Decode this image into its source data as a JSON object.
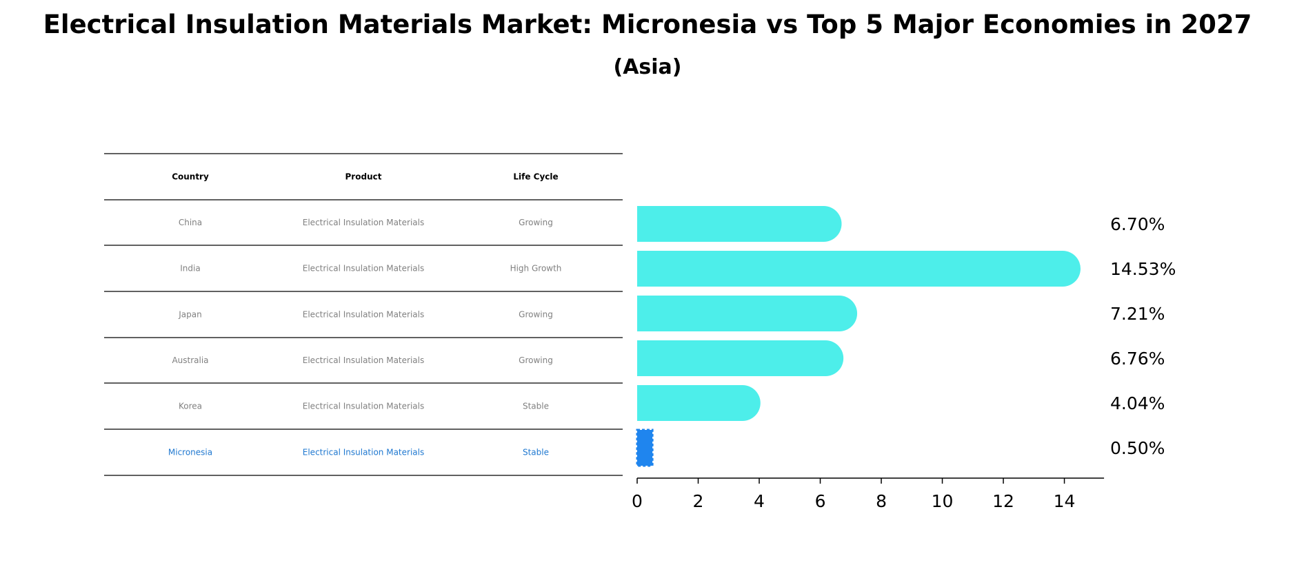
{
  "header": {
    "title": "Electrical Insulation Materials Market: Micronesia vs Top 5 Major Economies in 2027",
    "subtitle": "(Asia)"
  },
  "table": {
    "columns": [
      "Country",
      "Product",
      "Life Cycle"
    ],
    "rows": [
      {
        "country": "China",
        "product": "Electrical Insulation Materials",
        "life_cycle": "Growing"
      },
      {
        "country": "India",
        "product": "Electrical Insulation Materials",
        "life_cycle": "High Growth"
      },
      {
        "country": "Japan",
        "product": "Electrical Insulation Materials",
        "life_cycle": "Growing"
      },
      {
        "country": "Australia",
        "product": "Electrical Insulation Materials",
        "life_cycle": "Growing"
      },
      {
        "country": "Korea",
        "product": "Electrical Insulation Materials",
        "life_cycle": "Stable"
      },
      {
        "country": "Micronesia",
        "product": "Electrical Insulation Materials",
        "life_cycle": "Stable"
      }
    ]
  },
  "colors": {
    "bar": "#4deeea",
    "highlight": "#1f85ee",
    "highlight_text": "#1f78d0",
    "table_text": "#808080"
  },
  "chart_data": {
    "type": "bar",
    "orientation": "horizontal",
    "title": "Electrical Insulation Materials Market: Micronesia vs Top 5 Major Economies in 2027",
    "subtitle": "(Asia)",
    "categories": [
      "China",
      "India",
      "Japan",
      "Australia",
      "Korea",
      "Micronesia"
    ],
    "values": [
      6.7,
      14.53,
      7.21,
      6.76,
      4.04,
      0.5
    ],
    "value_labels": [
      "6.70%",
      "14.53%",
      "7.21%",
      "6.76%",
      "4.04%",
      "0.50%"
    ],
    "highlight": "Micronesia",
    "xlim": [
      0,
      15.3
    ],
    "xticks": [
      0,
      2,
      4,
      6,
      8,
      10,
      12,
      14
    ],
    "xlabel": "",
    "ylabel": "",
    "grid": false
  }
}
